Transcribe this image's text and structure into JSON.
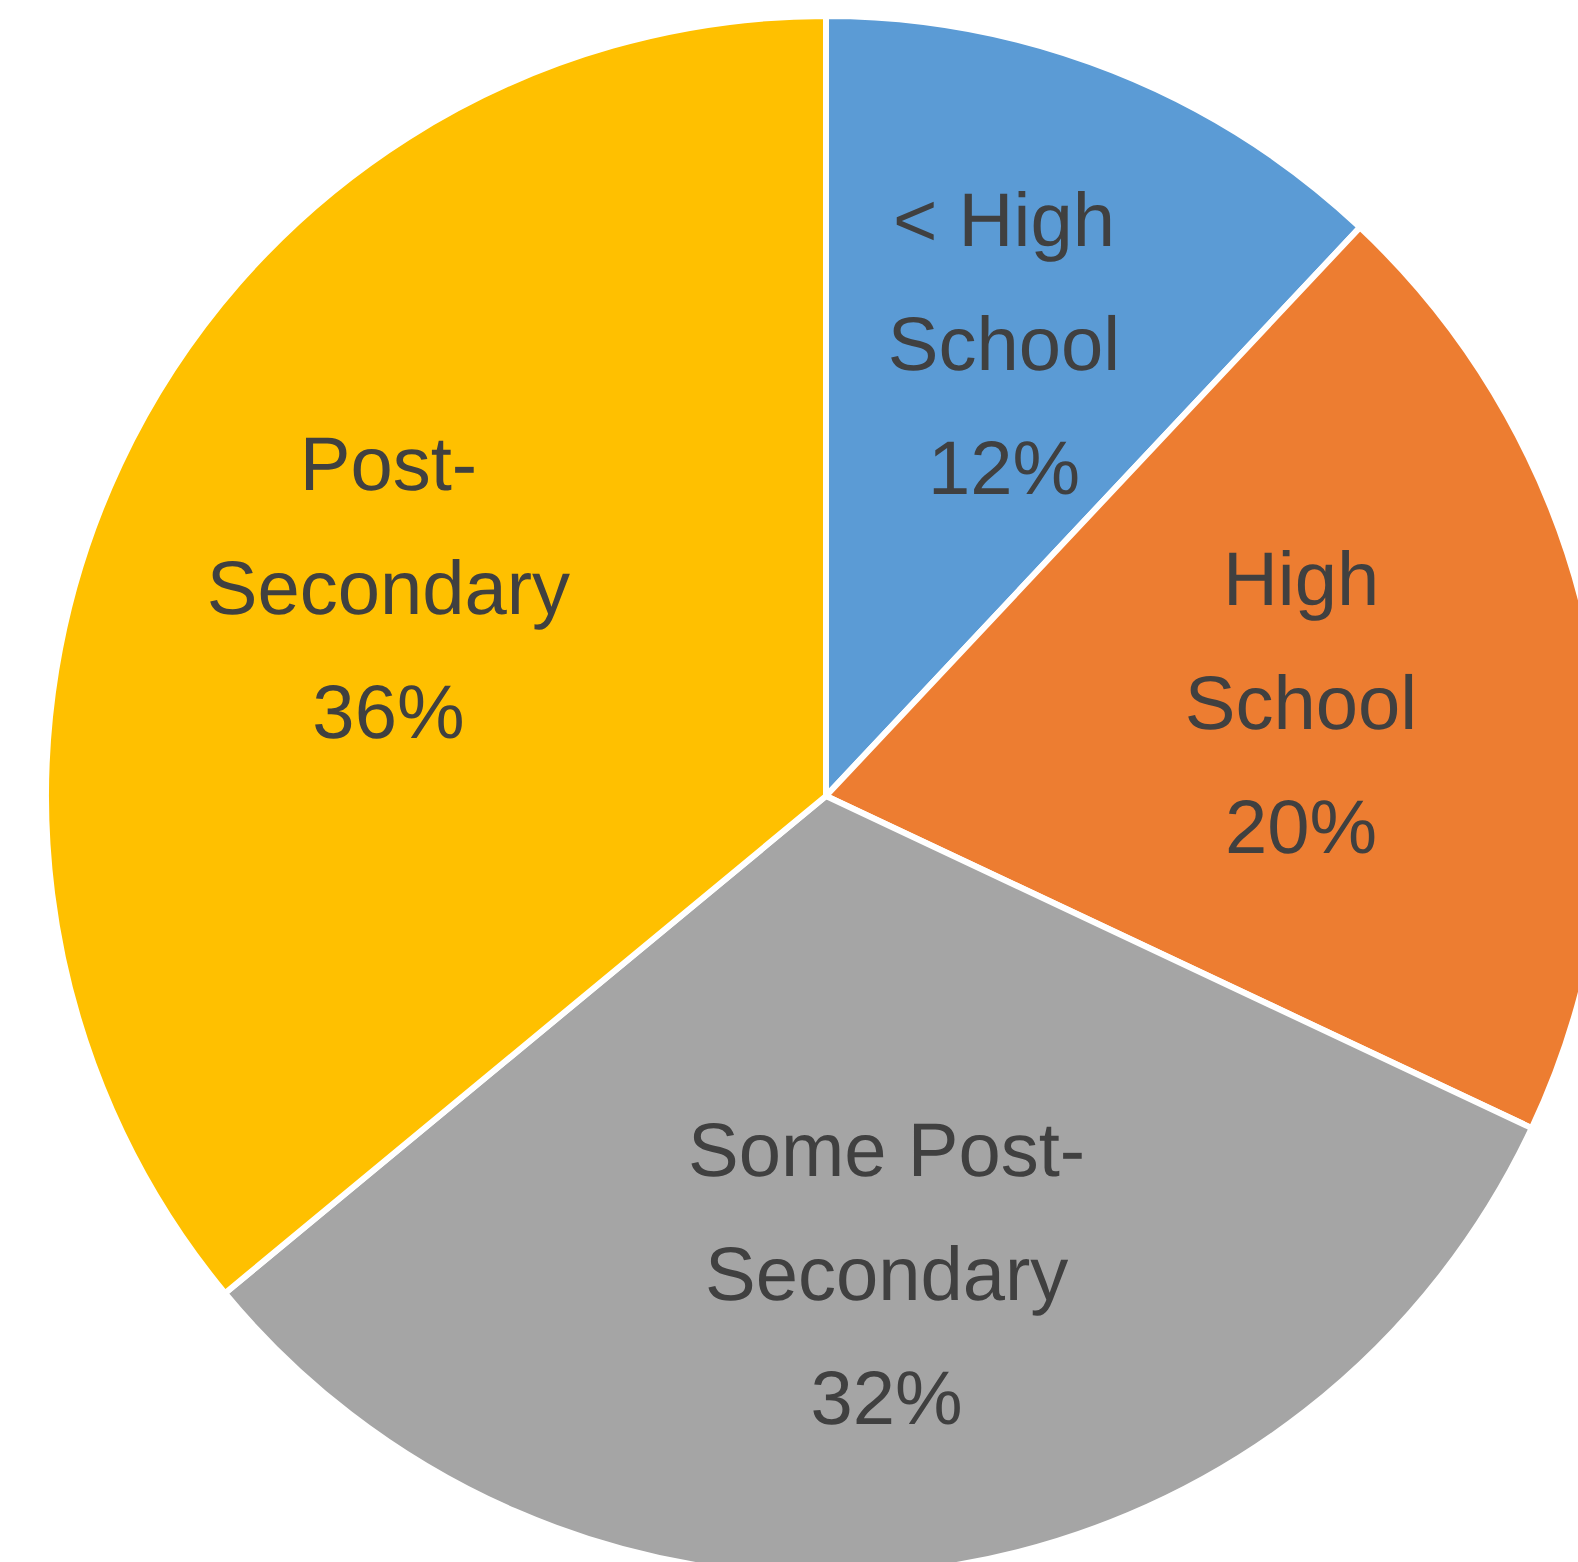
{
  "chart_data": {
    "type": "pie",
    "categories": [
      "< High School",
      "High School",
      "Some Post-Secondary",
      "Post-Secondary"
    ],
    "values": [
      12,
      20,
      32,
      36
    ],
    "value_labels": [
      "12%",
      "20%",
      "32%",
      "36%"
    ],
    "colors": [
      "#5b9bd5",
      "#ed7d31",
      "#a5a5a5",
      "#ffc000"
    ],
    "legend": false
  }
}
